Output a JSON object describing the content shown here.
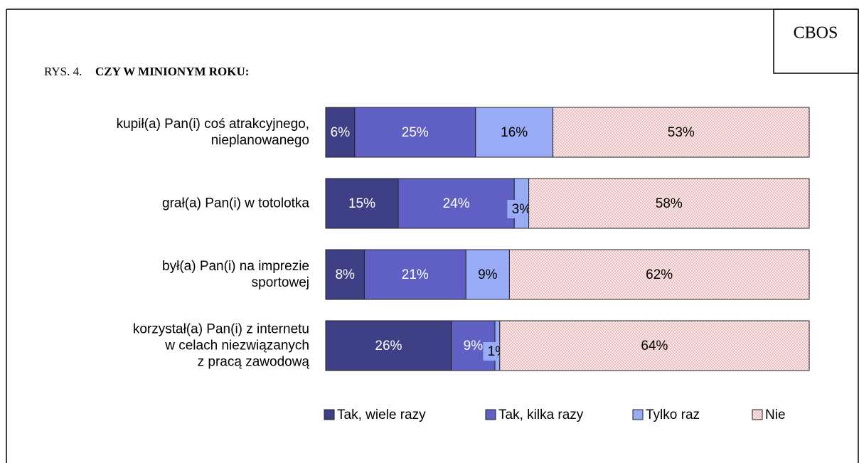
{
  "chart_data": {
    "type": "stacked-bar-horizontal",
    "source": "CBOS",
    "figure_label": "RYS. 4.",
    "title": "CZY W MINIONYM ROKU:",
    "categories": [
      "kupił(a) Pan(i) coś atrakcyjnego,\nnieplanowanego",
      "grał(a) Pan(i) w totolotka",
      "był(a) Pan(i) na imprezie\nsportowej",
      "korzystał(a) Pan(i) z internetu\nw celach niezwiązanych\nz pracą zawodową"
    ],
    "xlim": [
      0,
      100
    ],
    "series": [
      {
        "name": "Tak, wiele razy",
        "color": "#3f3f86",
        "values": [
          6,
          15,
          8,
          26
        ],
        "value_labels": [
          "6%",
          "15%",
          "8%",
          "26%"
        ]
      },
      {
        "name": "Tak, kilka razy",
        "color": "#5f5fc4",
        "values": [
          25,
          24,
          21,
          9
        ],
        "value_labels": [
          "25%",
          "24%",
          "21%",
          "9%"
        ]
      },
      {
        "name": "Tylko raz",
        "color": "#9aabf5",
        "values": [
          16,
          3,
          9,
          1
        ],
        "value_labels": [
          "16%",
          "3%",
          "9%",
          "1%"
        ]
      },
      {
        "name": "Nie",
        "color": "#fbeaea",
        "pattern": "dots",
        "values": [
          53,
          58,
          62,
          64
        ],
        "value_labels": [
          "53%",
          "58%",
          "62%",
          "64%"
        ]
      }
    ],
    "legend": "bottom"
  }
}
